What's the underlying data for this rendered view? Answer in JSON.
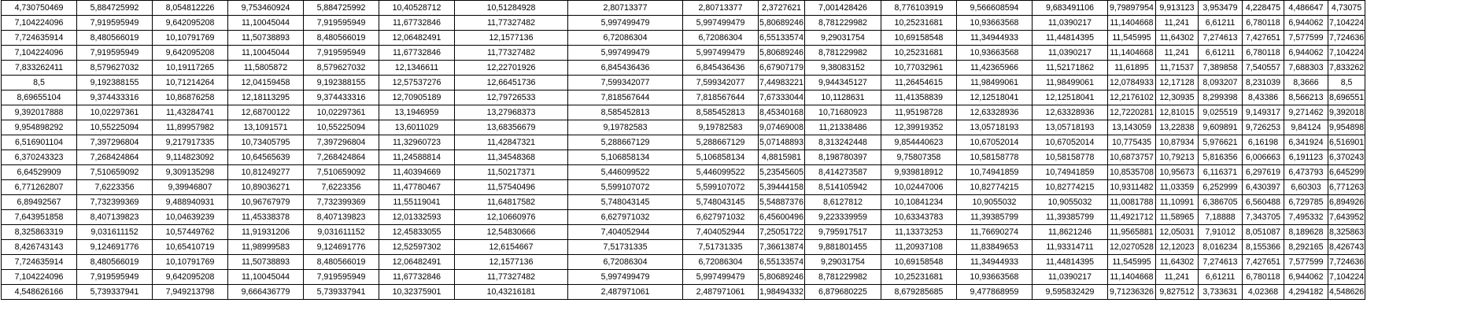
{
  "rows": [
    [
      "4,730750469",
      "5,884725992",
      "8,054812226",
      "9,753460924",
      "5,884725992",
      "10,40528712",
      "10,51284928",
      "2,80713377",
      "2,80713377",
      "2,3727621",
      "7,001428426",
      "8,776103919",
      "9,566608594",
      "9,683491106",
      "9,79897954",
      "9,913123",
      "3,953479",
      "4,228475",
      "4,486647",
      "4,73075"
    ],
    [
      "7,104224096",
      "7,919595949",
      "9,642095208",
      "11,10045044",
      "7,919595949",
      "11,67732846",
      "11,77327482",
      "5,997499479",
      "5,997499479",
      "5,80689246",
      "8,781229982",
      "10,25231681",
      "10,93663568",
      "11,0390217",
      "11,1404668",
      "11,241",
      "6,61211",
      "6,780118",
      "6,944062",
      "7,104224"
    ],
    [
      "7,724635914",
      "8,480566019",
      "10,10791769",
      "11,50738893",
      "8,480566019",
      "12,06482491",
      "12,1577136",
      "6,72086304",
      "6,72086304",
      "6,55133574",
      "9,29031754",
      "10,69158548",
      "11,34944933",
      "11,44814395",
      "11,545995",
      "11,64302",
      "7,274613",
      "7,427651",
      "7,577599",
      "7,724636"
    ],
    [
      "7,104224096",
      "7,919595949",
      "9,642095208",
      "11,10045044",
      "7,919595949",
      "11,67732846",
      "11,77327482",
      "5,997499479",
      "5,997499479",
      "5,80689246",
      "8,781229982",
      "10,25231681",
      "10,93663568",
      "11,0390217",
      "11,1404668",
      "11,241",
      "6,61211",
      "6,780118",
      "6,944062",
      "7,104224"
    ],
    [
      "7,833262411",
      "8,579627032",
      "10,19117265",
      "11,5805872",
      "8,579627032",
      "12,1346611",
      "12,22701926",
      "6,845436436",
      "6,845436436",
      "6,67907179",
      "9,38083152",
      "10,77032961",
      "11,42365966",
      "11,52171862",
      "11,61895",
      "11,71537",
      "7,389858",
      "7,540557",
      "7,688303",
      "7,833262"
    ],
    [
      "8,5",
      "9,192388155",
      "10,71214264",
      "12,04159458",
      "9,192388155",
      "12,57537276",
      "12,66451736",
      "7,599342077",
      "7,599342077",
      "7,44983221",
      "9,944345127",
      "11,26454615",
      "11,98499061",
      "11,98499061",
      "12,0784933",
      "12,17128",
      "8,093207",
      "8,231039",
      "8,3666",
      "8,5"
    ],
    [
      "8,69655104",
      "9,374433316",
      "10,86876258",
      "12,18113295",
      "9,374433316",
      "12,70905189",
      "12,79726533",
      "7,818567644",
      "7,818567644",
      "7,67333044",
      "10,1128631",
      "11,41358839",
      "12,12518041",
      "12,12518041",
      "12,2176102",
      "12,30935",
      "8,299398",
      "8,43386",
      "8,566213",
      "8,696551"
    ],
    [
      "9,392017888",
      "10,02297361",
      "11,43284741",
      "12,68700122",
      "10,02297361",
      "13,1946959",
      "13,27968373",
      "8,585452813",
      "8,585452813",
      "8,45340168",
      "10,71680923",
      "11,95198728",
      "12,63328936",
      "12,63328936",
      "12,7220281",
      "12,81015",
      "9,025519",
      "9,149317",
      "9,271462",
      "9,392018"
    ],
    [
      "9,954898292",
      "10,55225094",
      "11,89957982",
      "13,1091571",
      "10,55225094",
      "13,6011029",
      "13,68356679",
      "9,19782583",
      "9,19782583",
      "9,07469008",
      "11,21338486",
      "12,39919352",
      "13,05718193",
      "13,05718193",
      "13,143059",
      "13,22838",
      "9,609891",
      "9,726253",
      "9,84124",
      "9,954898"
    ],
    [
      "6,516901104",
      "7,397296804",
      "9,217917335",
      "10,73405795",
      "7,397296804",
      "11,32960723",
      "11,42847321",
      "5,288667129",
      "5,288667129",
      "5,07148893",
      "8,313242448",
      "9,854440623",
      "10,67052014",
      "10,67052014",
      "10,775435",
      "10,87934",
      "5,976621",
      "6,16198",
      "6,341924",
      "6,516901"
    ],
    [
      "6,370243323",
      "7,268424864",
      "9,114823092",
      "10,64565639",
      "7,268424864",
      "11,24588814",
      "11,34548368",
      "5,106858134",
      "5,106858134",
      "4,8815981",
      "8,198780397",
      "9,75807358",
      "10,58158778",
      "10,58158778",
      "10,6873757",
      "10,79213",
      "5,816356",
      "6,006663",
      "6,191123",
      "6,370243"
    ],
    [
      "6,64529909",
      "7,510659092",
      "9,309135298",
      "10,81249277",
      "7,510659092",
      "11,40394669",
      "11,50217371",
      "5,446099522",
      "5,446099522",
      "5,23545605",
      "8,414273587",
      "9,939818912",
      "10,74941859",
      "10,74941859",
      "10,8535708",
      "10,95673",
      "6,116371",
      "6,297619",
      "6,473793",
      "6,645299"
    ],
    [
      "6,771262807",
      "7,6223356",
      "9,39946807",
      "10,89036271",
      "7,6223356",
      "11,47780467",
      "11,57540496",
      "5,599107072",
      "5,599107072",
      "5,39444158",
      "8,514105942",
      "10,02447006",
      "10,82774215",
      "10,82774215",
      "10,9311482",
      "11,03359",
      "6,252999",
      "6,430397",
      "6,60303",
      "6,771263"
    ],
    [
      "6,89492567",
      "7,732399369",
      "9,488940931",
      "10,96767979",
      "7,732399369",
      "11,55119041",
      "11,64817582",
      "5,748043145",
      "5,748043145",
      "5,54887376",
      "8,6127812",
      "10,10841234",
      "10,9055032",
      "10,9055032",
      "11,0081788",
      "11,10991",
      "6,386705",
      "6,560488",
      "6,729785",
      "6,894926"
    ],
    [
      "7,643951858",
      "8,407139823",
      "10,04639239",
      "11,45338378",
      "8,407139823",
      "12,01332593",
      "12,10660976",
      "6,627971032",
      "6,627971032",
      "6,45600496",
      "9,223339959",
      "10,63343783",
      "11,39385799",
      "11,39385799",
      "11,4921712",
      "11,58965",
      "7,18888",
      "7,343705",
      "7,495332",
      "7,643952"
    ],
    [
      "8,325863319",
      "9,031611152",
      "10,57449762",
      "11,91931206",
      "9,031611152",
      "12,45833055",
      "12,54830666",
      "7,404052944",
      "7,404052944",
      "7,25051722",
      "9,795917517",
      "11,13373253",
      "11,76690274",
      "11,8621246",
      "11,9565881",
      "12,05031",
      "7,91012",
      "8,051087",
      "8,189628",
      "8,325863"
    ],
    [
      "8,426743143",
      "9,124691776",
      "10,65410719",
      "11,98999583",
      "9,124691776",
      "12,52597302",
      "12,6154667",
      "7,51731335",
      "7,51731335",
      "7,36613874",
      "9,881801455",
      "11,20937108",
      "11,83849653",
      "11,93314711",
      "12,0270528",
      "12,12023",
      "8,016234",
      "8,155366",
      "8,292165",
      "8,426743"
    ],
    [
      "7,724635914",
      "8,480566019",
      "10,10791769",
      "11,50738893",
      "8,480566019",
      "12,06482491",
      "12,1577136",
      "6,72086304",
      "6,72086304",
      "6,55133574",
      "9,29031754",
      "10,69158548",
      "11,34944933",
      "11,44814395",
      "11,545995",
      "11,64302",
      "7,274613",
      "7,427651",
      "7,577599",
      "7,724636"
    ],
    [
      "7,104224096",
      "7,919595949",
      "9,642095208",
      "11,10045044",
      "7,919595949",
      "11,67732846",
      "11,77327482",
      "5,997499479",
      "5,997499479",
      "5,80689246",
      "8,781229982",
      "10,25231681",
      "10,93663568",
      "11,0390217",
      "11,1404668",
      "11,241",
      "6,61211",
      "6,780118",
      "6,944062",
      "7,104224"
    ],
    [
      "4,548626166",
      "5,739337941",
      "7,949213798",
      "9,666436779",
      "5,739337941",
      "10,32375901",
      "10,43216181",
      "2,487971061",
      "2,487971061",
      "1,98494332",
      "6,879680225",
      "8,679285685",
      "9,477868959",
      "9,595832429",
      "9,71236326",
      "9,827512",
      "3,733631",
      "4,02368",
      "4,294182",
      "4,548626"
    ]
  ]
}
